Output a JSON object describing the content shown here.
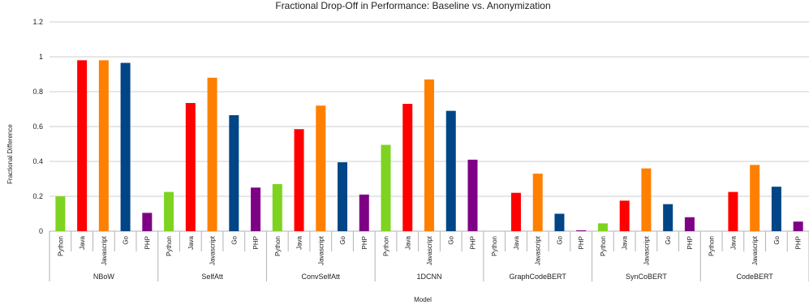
{
  "chart_data": {
    "type": "bar",
    "title": "Fractional Drop-Off in Performance: Baseline vs. Anonymization",
    "xlabel": "Model",
    "ylabel": "Fractional Difference",
    "ylim": [
      0,
      1.2
    ],
    "yticks": [
      "0",
      "0.2",
      "0.4",
      "0.6",
      "0.8",
      "1",
      "1.2"
    ],
    "grid": true,
    "legend": "none",
    "languages": [
      "Python",
      "Java",
      "Javascript",
      "Go",
      "PHP"
    ],
    "colors": {
      "Python": "#7ed321",
      "Java": "#ff0000",
      "Javascript": "#ff8000",
      "Go": "#004586",
      "PHP": "#7e0085"
    },
    "groups": [
      {
        "name": "NBoW",
        "values": [
          0.2,
          0.98,
          0.98,
          0.965,
          0.105
        ]
      },
      {
        "name": "SelfAtt",
        "values": [
          0.225,
          0.735,
          0.88,
          0.665,
          0.25
        ]
      },
      {
        "name": "ConvSelfAtt",
        "values": [
          0.27,
          0.585,
          0.72,
          0.395,
          0.21
        ]
      },
      {
        "name": "1DCNN",
        "values": [
          0.495,
          0.73,
          0.87,
          0.69,
          0.41
        ]
      },
      {
        "name": "GraphCodeBERT",
        "values": [
          0.0,
          0.22,
          0.33,
          0.1,
          0.005
        ]
      },
      {
        "name": "SynCoBERT",
        "values": [
          0.045,
          0.175,
          0.36,
          0.155,
          0.08
        ]
      },
      {
        "name": "CodeBERT",
        "values": [
          0.0,
          0.225,
          0.38,
          0.255,
          0.055
        ]
      }
    ]
  }
}
